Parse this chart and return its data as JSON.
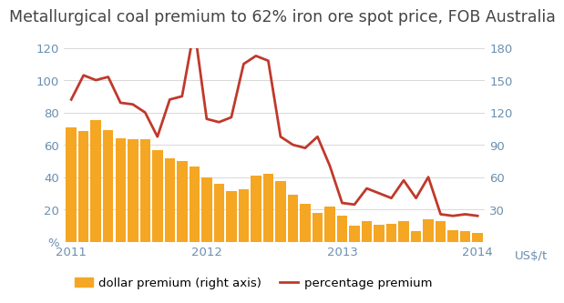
{
  "title": "Metallurgical coal premium to 62% iron ore spot price, FOB Australia",
  "bar_color": "#F5A623",
  "line_color": "#C0392B",
  "bar_label": "dollar premium (right axis)",
  "line_label": "percentage premium",
  "ylabel_right": "US$/t",
  "ylim_left": [
    0,
    120
  ],
  "ylim_right": [
    0,
    180
  ],
  "yticks_left": [
    0,
    20,
    40,
    60,
    80,
    100,
    120
  ],
  "yticks_right": [
    0,
    30,
    60,
    90,
    120,
    150,
    180
  ],
  "ytick_labels_left": [
    "%",
    "20",
    "40",
    "60",
    "80",
    "100",
    "120"
  ],
  "background_color": "#ffffff",
  "bar_values": [
    106,
    103,
    113,
    104,
    96,
    95,
    95,
    85,
    77,
    75,
    70,
    60,
    54,
    47,
    49,
    61,
    63,
    56,
    44,
    35,
    27,
    33,
    24,
    15,
    19,
    16,
    17,
    19,
    10,
    21,
    19,
    11,
    10,
    8
  ],
  "line_values_pct": [
    88,
    103,
    100,
    102,
    86,
    85,
    80,
    65,
    88,
    90,
    132,
    76,
    74,
    77,
    110,
    115,
    112,
    65,
    60,
    58,
    65,
    47,
    24,
    23,
    33,
    30,
    27,
    38,
    27,
    40,
    17,
    16,
    17,
    16
  ],
  "year_starts": [
    0,
    11,
    22,
    33
  ],
  "year_labels": [
    "2011",
    "2012",
    "2013",
    "2014"
  ],
  "title_fontsize": 12.5,
  "tick_fontsize": 9.5,
  "legend_fontsize": 9.5,
  "tick_color": "#6a8faf",
  "grid_color": "#d8d8d8",
  "title_color": "#444444"
}
